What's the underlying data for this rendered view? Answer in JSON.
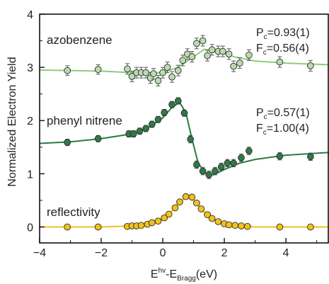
{
  "chart_data": {
    "type": "scatter",
    "xlabel": {
      "base": "E",
      "sup": "hv",
      "mid": "-E",
      "sub": "Bragg",
      "unit": "(eV)"
    },
    "ylabel": "Normalized Electron Yield",
    "xlim": [
      -4,
      5.4
    ],
    "ylim": [
      -0.3,
      4
    ],
    "xticks": [
      -4,
      -2,
      0,
      2,
      4
    ],
    "yticks": [
      0,
      1,
      2,
      3,
      4
    ],
    "grid": false,
    "series": [
      {
        "name": "azobenzene",
        "marker_color": "#b9dcae",
        "line_color": "#8fcc80",
        "points": [
          {
            "x": -3.1,
            "y": 2.94,
            "err": 0.09
          },
          {
            "x": -2.1,
            "y": 2.96,
            "err": 0.09
          },
          {
            "x": -1.15,
            "y": 2.97,
            "err": 0.1
          },
          {
            "x": -1.0,
            "y": 2.83,
            "err": 0.1
          },
          {
            "x": -0.85,
            "y": 2.9,
            "err": 0.1
          },
          {
            "x": -0.7,
            "y": 2.9,
            "err": 0.1
          },
          {
            "x": -0.55,
            "y": 2.9,
            "err": 0.1
          },
          {
            "x": -0.4,
            "y": 2.8,
            "err": 0.1
          },
          {
            "x": -0.3,
            "y": 2.88,
            "err": 0.1
          },
          {
            "x": -0.15,
            "y": 2.75,
            "err": 0.1
          },
          {
            "x": 0.0,
            "y": 2.9,
            "err": 0.1
          },
          {
            "x": 0.15,
            "y": 3.0,
            "err": 0.1
          },
          {
            "x": 0.3,
            "y": 2.82,
            "err": 0.1
          },
          {
            "x": 0.5,
            "y": 2.94,
            "err": 0.1
          },
          {
            "x": 0.65,
            "y": 3.13,
            "err": 0.1
          },
          {
            "x": 0.8,
            "y": 3.25,
            "err": 0.1
          },
          {
            "x": 0.95,
            "y": 3.2,
            "err": 0.1
          },
          {
            "x": 1.1,
            "y": 3.45,
            "err": 0.1
          },
          {
            "x": 1.3,
            "y": 3.5,
            "err": 0.1
          },
          {
            "x": 1.45,
            "y": 3.22,
            "err": 0.1
          },
          {
            "x": 1.6,
            "y": 3.33,
            "err": 0.1
          },
          {
            "x": 1.8,
            "y": 3.3,
            "err": 0.1
          },
          {
            "x": 1.95,
            "y": 3.3,
            "err": 0.1
          },
          {
            "x": 2.15,
            "y": 3.25,
            "err": 0.1
          },
          {
            "x": 2.3,
            "y": 3.02,
            "err": 0.1
          },
          {
            "x": 2.5,
            "y": 3.08,
            "err": 0.1
          },
          {
            "x": 2.8,
            "y": 3.23,
            "err": 0.1
          },
          {
            "x": 3.8,
            "y": 3.1,
            "err": 0.1
          },
          {
            "x": 4.8,
            "y": 3.03,
            "err": 0.1
          }
        ],
        "fit": [
          [
            -4,
            2.95
          ],
          [
            -2,
            2.93
          ],
          [
            -1,
            2.9
          ],
          [
            0,
            2.9
          ],
          [
            0.5,
            3.0
          ],
          [
            1.0,
            3.2
          ],
          [
            1.35,
            3.34
          ],
          [
            1.8,
            3.3
          ],
          [
            2.3,
            3.2
          ],
          [
            3,
            3.12
          ],
          [
            4,
            3.08
          ],
          [
            5.4,
            3.05
          ]
        ]
      },
      {
        "name": "phenyl nitrene",
        "marker_color": "#2f7a46",
        "line_color": "#2c7a44",
        "points": [
          {
            "x": -3.1,
            "y": 1.59,
            "err": 0.06
          },
          {
            "x": -2.1,
            "y": 1.66,
            "err": 0.06
          },
          {
            "x": -1.1,
            "y": 1.75,
            "err": 0.06
          },
          {
            "x": -0.95,
            "y": 1.75,
            "err": 0.06
          },
          {
            "x": -0.75,
            "y": 1.8,
            "err": 0.06
          },
          {
            "x": -0.55,
            "y": 1.85,
            "err": 0.06
          },
          {
            "x": -0.35,
            "y": 1.93,
            "err": 0.06
          },
          {
            "x": -0.15,
            "y": 2.02,
            "err": 0.06
          },
          {
            "x": 0.05,
            "y": 2.15,
            "err": 0.06
          },
          {
            "x": 0.3,
            "y": 2.3,
            "err": 0.06
          },
          {
            "x": 0.5,
            "y": 2.37,
            "err": 0.06
          },
          {
            "x": 0.7,
            "y": 2.14,
            "err": 0.06
          },
          {
            "x": 0.9,
            "y": 1.65,
            "err": 0.07
          },
          {
            "x": 1.1,
            "y": 1.17,
            "err": 0.07
          },
          {
            "x": 1.3,
            "y": 1.05,
            "err": 0.07
          },
          {
            "x": 1.5,
            "y": 0.98,
            "err": 0.07
          },
          {
            "x": 1.7,
            "y": 1.05,
            "err": 0.07
          },
          {
            "x": 1.9,
            "y": 1.13,
            "err": 0.07
          },
          {
            "x": 2.1,
            "y": 1.2,
            "err": 0.07
          },
          {
            "x": 2.3,
            "y": 1.2,
            "err": 0.07
          },
          {
            "x": 2.55,
            "y": 1.3,
            "err": 0.07
          },
          {
            "x": 2.8,
            "y": 1.43,
            "err": 0.07
          },
          {
            "x": 3.8,
            "y": 1.33,
            "err": 0.07
          },
          {
            "x": 4.8,
            "y": 1.32,
            "err": 0.07
          }
        ],
        "fit": [
          [
            -4,
            1.57
          ],
          [
            -3,
            1.6
          ],
          [
            -2,
            1.66
          ],
          [
            -1,
            1.75
          ],
          [
            -0.5,
            1.86
          ],
          [
            0,
            2.05
          ],
          [
            0.3,
            2.25
          ],
          [
            0.55,
            2.34
          ],
          [
            0.75,
            2.15
          ],
          [
            0.95,
            1.65
          ],
          [
            1.15,
            1.2
          ],
          [
            1.4,
            1.0
          ],
          [
            1.65,
            0.98
          ],
          [
            2.0,
            1.08
          ],
          [
            2.5,
            1.2
          ],
          [
            3,
            1.27
          ],
          [
            4,
            1.35
          ],
          [
            5.4,
            1.4
          ]
        ]
      },
      {
        "name": "reflectivity",
        "marker_color": "#f2c21b",
        "line_color": "#f0c020",
        "points": [
          {
            "x": -3.1,
            "y": 0.0
          },
          {
            "x": -2.1,
            "y": 0.0
          },
          {
            "x": -1.15,
            "y": 0.01
          },
          {
            "x": -1.0,
            "y": 0.02
          },
          {
            "x": -0.85,
            "y": 0.02
          },
          {
            "x": -0.7,
            "y": 0.03
          },
          {
            "x": -0.5,
            "y": 0.05
          },
          {
            "x": -0.35,
            "y": 0.08
          },
          {
            "x": -0.15,
            "y": 0.11
          },
          {
            "x": 0.05,
            "y": 0.17
          },
          {
            "x": 0.2,
            "y": 0.24
          },
          {
            "x": 0.4,
            "y": 0.36
          },
          {
            "x": 0.55,
            "y": 0.47
          },
          {
            "x": 0.75,
            "y": 0.57
          },
          {
            "x": 0.95,
            "y": 0.56
          },
          {
            "x": 1.1,
            "y": 0.45
          },
          {
            "x": 1.25,
            "y": 0.34
          },
          {
            "x": 1.45,
            "y": 0.23
          },
          {
            "x": 1.6,
            "y": 0.16
          },
          {
            "x": 1.8,
            "y": 0.1
          },
          {
            "x": 2.0,
            "y": 0.06
          },
          {
            "x": 2.15,
            "y": 0.04
          },
          {
            "x": 2.35,
            "y": 0.03
          },
          {
            "x": 2.55,
            "y": 0.02
          },
          {
            "x": 2.75,
            "y": 0.01
          },
          {
            "x": 3.8,
            "y": 0.0
          },
          {
            "x": 4.8,
            "y": 0.0
          }
        ],
        "fit": [
          [
            -4,
            0.0
          ],
          [
            -2,
            0.0
          ],
          [
            -1,
            0.02
          ],
          [
            -0.5,
            0.05
          ],
          [
            0,
            0.15
          ],
          [
            0.3,
            0.3
          ],
          [
            0.6,
            0.5
          ],
          [
            0.85,
            0.58
          ],
          [
            1.1,
            0.45
          ],
          [
            1.4,
            0.25
          ],
          [
            1.8,
            0.1
          ],
          [
            2.3,
            0.03
          ],
          [
            3,
            0.0
          ],
          [
            5.4,
            0.0
          ]
        ]
      }
    ],
    "annotations": [
      {
        "series": "azobenzene",
        "p_base": "P",
        "p_sub": "c",
        "p_val": "=0.93(1)",
        "f_base": "F",
        "f_sub": "c",
        "f_val": "=0.56(4)"
      },
      {
        "series": "phenyl nitrene",
        "p_base": "P",
        "p_sub": "c",
        "p_val": "=0.57(1)",
        "f_base": "F",
        "f_sub": "c",
        "f_val": "=1.00(4)"
      }
    ]
  }
}
